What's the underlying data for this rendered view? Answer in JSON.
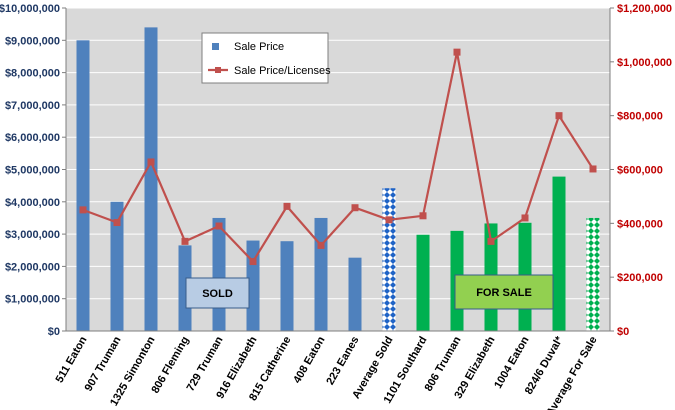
{
  "chart_data": {
    "type": "bar",
    "categories": [
      "511 Eaton",
      "907 Truman",
      "1325 Simonton",
      "806 Fleming",
      "729 Truman",
      "916 Elizabeth",
      "815 Catherine",
      "408 Eaton",
      "223 Eanes",
      "Average Sold",
      "1101 Southard",
      "806 Truman",
      "329 Elizabeth",
      "1004 Eaton",
      "824/6 Duval*",
      "Average For Sale"
    ],
    "series": [
      {
        "name": "Sale Price",
        "type": "bar",
        "axis": "left",
        "values": [
          9000000,
          4000000,
          9400000,
          2650000,
          3500000,
          2800000,
          2780000,
          3500000,
          2270000,
          4420000,
          2980000,
          3100000,
          3330000,
          3350000,
          4780000,
          3500000
        ],
        "bar_colors": [
          "#4f81bd",
          "#4f81bd",
          "#4f81bd",
          "#4f81bd",
          "#4f81bd",
          "#4f81bd",
          "#4f81bd",
          "#4f81bd",
          "#4f81bd",
          "#4f81bd",
          "#00b050",
          "#00b050",
          "#00b050",
          "#00b050",
          "#00b050",
          "#00b050"
        ],
        "patterned": [
          false,
          false,
          false,
          false,
          false,
          false,
          false,
          false,
          false,
          true,
          false,
          false,
          false,
          false,
          false,
          true
        ]
      },
      {
        "name": "Sale Price/Licenses",
        "type": "line",
        "axis": "right",
        "values": [
          450000,
          403000,
          628000,
          333000,
          390000,
          258000,
          463000,
          318000,
          458000,
          413000,
          428000,
          1036000,
          333000,
          420000,
          800000,
          602000
        ]
      }
    ],
    "y_left": {
      "min": 0,
      "max": 10000000,
      "step": 1000000,
      "ticks": [
        "$0",
        "$1,000,000",
        "$2,000,000",
        "$3,000,000",
        "$4,000,000",
        "$5,000,000",
        "$6,000,000",
        "$7,000,000",
        "$8,000,000",
        "$9,000,000",
        "$10,000,000"
      ]
    },
    "y_right": {
      "min": 0,
      "max": 1200000,
      "step": 200000,
      "ticks": [
        "$0",
        "$200,000",
        "$400,000",
        "$600,000",
        "$800,000",
        "$1,000,000",
        "$1,200,000"
      ]
    },
    "annotations": [
      {
        "text": "SOLD"
      },
      {
        "text": "FOR SALE"
      }
    ],
    "legend_position": "top-right",
    "grid": true,
    "colors": {
      "sold_bar": "#4f81bd",
      "sale_bar": "#00b050",
      "line": "#c0504d",
      "plot_bg": "#d9d9d9",
      "gridline": "#ffffff",
      "left_axis_text": "#1f3864",
      "right_axis_text": "#c00000",
      "sold_box": "#b8cce4",
      "sale_box": "#92d050"
    }
  }
}
